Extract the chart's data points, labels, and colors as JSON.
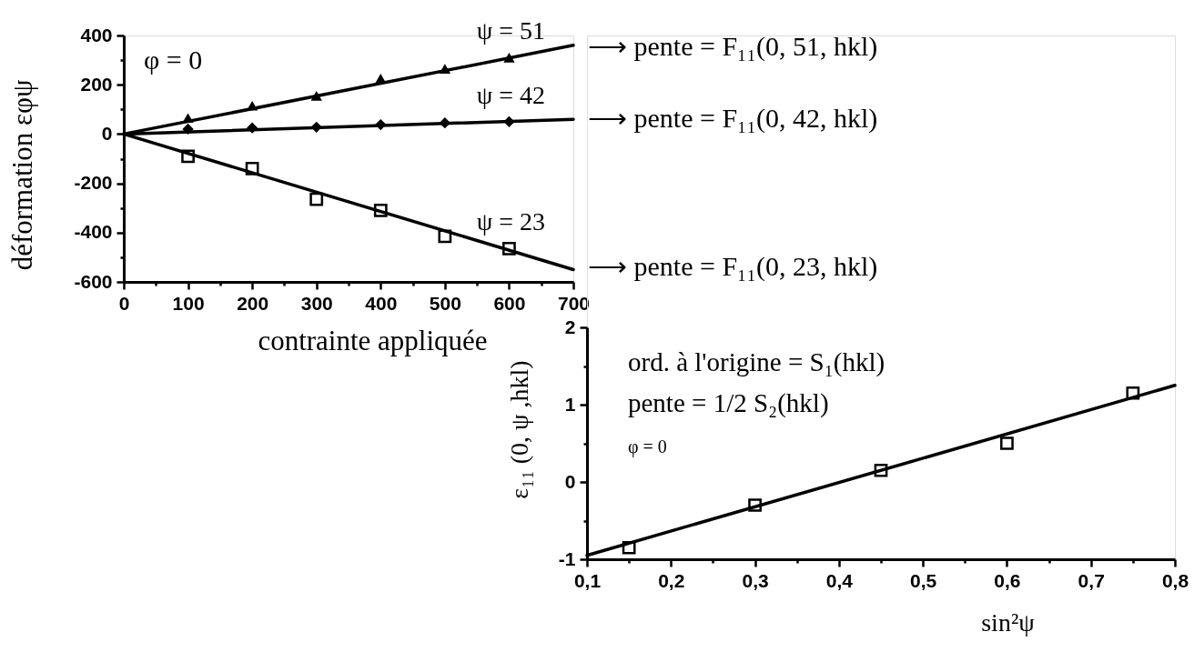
{
  "chart_data": [
    {
      "type": "scatter",
      "xlabel": "contrainte appliquée",
      "ylabel": "déformation εφψ",
      "xlim": [
        0,
        700
      ],
      "ylim": [
        -600,
        400
      ],
      "xticks": [
        0,
        {
          "value": 50,
          "label": null
        },
        100,
        {
          "value": 150,
          "label": null
        },
        200,
        {
          "value": 250,
          "label": null
        },
        300,
        {
          "value": 350,
          "label": null
        },
        400,
        {
          "value": 450,
          "label": null
        },
        500,
        {
          "value": 550,
          "label": null
        },
        600,
        {
          "value": 650,
          "label": null
        },
        700
      ],
      "yticks": [
        -600,
        {
          "value": -500,
          "label": null
        },
        -400,
        {
          "value": -300,
          "label": null
        },
        -200,
        {
          "value": -100,
          "label": null
        },
        0,
        {
          "value": 100,
          "label": null
        },
        200,
        {
          "value": 300,
          "label": null
        },
        400
      ],
      "series": [
        {
          "name": "ψ = 51",
          "type": "scatter",
          "marker": "triangle",
          "color": "#000000",
          "x": [
            100,
            200,
            300,
            400,
            500,
            600
          ],
          "values": [
            65,
            115,
            155,
            225,
            265,
            310
          ]
        },
        {
          "type": "line",
          "color": "#000000",
          "x": [
            0,
            700
          ],
          "values": [
            0,
            360
          ]
        },
        {
          "name": "ψ = 42",
          "type": "scatter",
          "marker": "diamond",
          "color": "#000000",
          "x": [
            100,
            200,
            300,
            400,
            500,
            600
          ],
          "values": [
            20,
            25,
            28,
            38,
            45,
            50
          ]
        },
        {
          "type": "line",
          "color": "#000000",
          "x": [
            0,
            700
          ],
          "values": [
            0,
            60
          ]
        },
        {
          "name": "ψ = 23",
          "type": "scatter",
          "marker": "square",
          "color": "#000000",
          "x": [
            100,
            200,
            300,
            400,
            500,
            600
          ],
          "values": [
            -90,
            -140,
            -265,
            -310,
            -415,
            -465
          ]
        },
        {
          "type": "line",
          "color": "#000000",
          "x": [
            0,
            700
          ],
          "values": [
            0,
            -550
          ]
        }
      ],
      "annotations": [
        "φ = 0",
        "⟶ pente = F₁₁(0, 51, hkl)",
        "⟶ pente = F₁₁(0, 42, hkl)",
        "⟶ pente = F₁₁(0, 23, hkl)"
      ]
    },
    {
      "type": "scatter",
      "xlabel": "sin²ψ",
      "ylabel": "ε₁₁ (0, ψ ,hkl)",
      "xlim": [
        0.1,
        0.8
      ],
      "ylim": [
        -1,
        2
      ],
      "xticks": [
        {
          "value": 0.1,
          "label": "0,1"
        },
        {
          "value": 0.15,
          "label": null
        },
        {
          "value": 0.2,
          "label": "0,2"
        },
        {
          "value": 0.25,
          "label": null
        },
        {
          "value": 0.3,
          "label": "0,3"
        },
        {
          "value": 0.35,
          "label": null
        },
        {
          "value": 0.4,
          "label": "0,4"
        },
        {
          "value": 0.45,
          "label": null
        },
        {
          "value": 0.5,
          "label": "0,5"
        },
        {
          "value": 0.55,
          "label": null
        },
        {
          "value": 0.6,
          "label": "0,6"
        },
        {
          "value": 0.65,
          "label": null
        },
        {
          "value": 0.7,
          "label": "0,7"
        },
        {
          "value": 0.75,
          "label": null
        },
        {
          "value": 0.8,
          "label": "0,8"
        }
      ],
      "yticks": [
        -1,
        {
          "value": -0.5,
          "label": null
        },
        0,
        {
          "value": 0.5,
          "label": null
        },
        1,
        {
          "value": 1.5,
          "label": null
        },
        2
      ],
      "series": [
        {
          "type": "scatter",
          "marker": "square",
          "color": "#000000",
          "x": [
            0.15,
            0.3,
            0.45,
            0.6,
            0.75
          ],
          "values": [
            -0.85,
            -0.3,
            0.15,
            0.5,
            1.15
          ]
        },
        {
          "type": "line",
          "color": "#000000",
          "x": [
            0.1,
            0.8
          ],
          "values": [
            -0.95,
            1.25
          ]
        }
      ],
      "annotations": [
        "ord. à l'origine = S₁(hkl)",
        "pente = 1/2 S₂(hkl)",
        "φ = 0"
      ]
    }
  ]
}
